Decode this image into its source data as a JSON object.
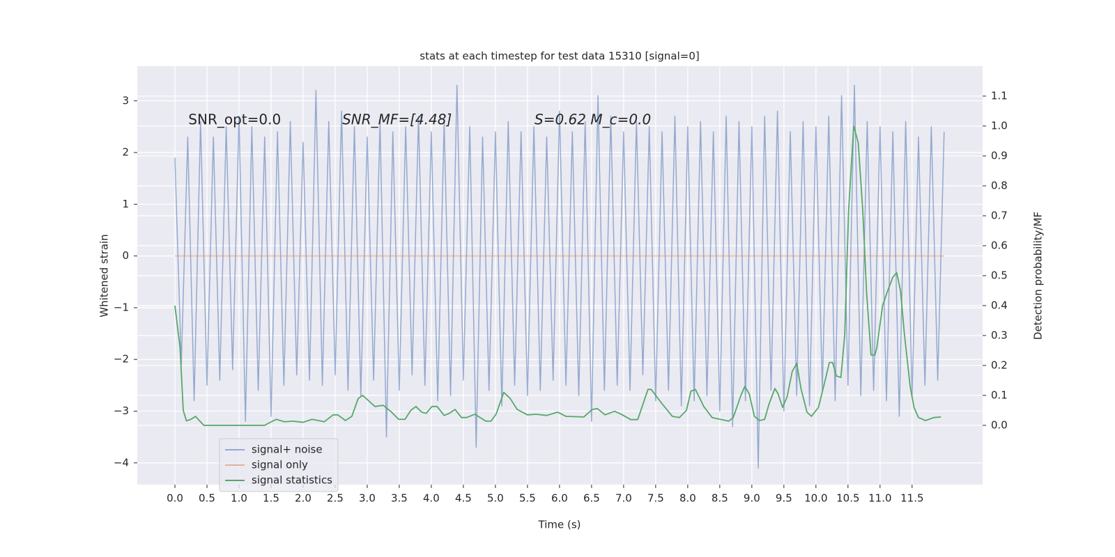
{
  "chart_data": {
    "type": "line",
    "title": "stats at each timestep for test data 15310 [signal=0]",
    "x_label": "Time (s)",
    "y_label": "Whitened strain",
    "y2_label": "Detection probability/MF",
    "annotations": [
      "SNR_opt=0.0",
      "SNR_MF=[4.48]",
      "S=0.62   M_c=0.0"
    ],
    "xlim": [
      -0.587,
      12.6
    ],
    "ylim": [
      -4.42,
      3.67
    ],
    "y2lim": [
      -0.198,
      1.2
    ],
    "xticks": [
      {
        "value": 0,
        "label": "0.0"
      },
      0.5,
      {
        "value": 1,
        "label": "1.0"
      },
      1.5,
      {
        "value": 2,
        "label": "2.0"
      },
      2.5,
      {
        "value": 3,
        "label": "3.0"
      },
      3.5,
      {
        "value": 4,
        "label": "4.0"
      },
      4.5,
      {
        "value": 5,
        "label": "5.0"
      },
      5.5,
      {
        "value": 6,
        "label": "6.0"
      },
      6.5,
      {
        "value": 7,
        "label": "7.0"
      },
      7.5,
      {
        "value": 8,
        "label": "8.0"
      },
      8.5,
      {
        "value": 9,
        "label": "9.0"
      },
      9.5,
      {
        "value": 10,
        "label": "10.0"
      },
      10.5,
      {
        "value": 11,
        "label": "11.0"
      },
      11.5
    ],
    "yticks": [
      3,
      2,
      1,
      0,
      {
        "value": -1,
        "label": "−1"
      },
      {
        "value": -2,
        "label": "−2"
      },
      {
        "value": -3,
        "label": "−3"
      },
      {
        "value": -4,
        "label": "−4"
      }
    ],
    "y2ticks": [
      {
        "value": 0,
        "label": "0.0"
      },
      0.1,
      0.2,
      0.3,
      0.4,
      0.5,
      0.6,
      0.7,
      0.8,
      0.9,
      {
        "value": 1,
        "label": "1.0"
      },
      1.1
    ],
    "grid": true,
    "legend": "lower left",
    "series": [
      {
        "name": "signal+ noise",
        "color": "#4c72b0",
        "alpha": 0.55,
        "x": [
          0,
          0.1,
          0.2,
          0.3,
          0.4,
          0.5,
          0.6,
          0.7,
          0.8,
          0.9,
          1,
          1.1,
          1.2,
          1.3,
          1.4,
          1.5,
          1.6,
          1.7,
          1.8,
          1.9,
          2,
          2.1,
          2.2,
          2.3,
          2.4,
          2.5,
          2.6,
          2.7,
          2.8,
          2.9,
          3,
          3.1,
          3.2,
          3.3,
          3.4,
          3.5,
          3.6,
          3.7,
          3.8,
          3.9,
          4,
          4.1,
          4.2,
          4.3,
          4.4,
          4.5,
          4.6,
          4.7,
          4.8,
          4.9,
          5,
          5.1,
          5.2,
          5.3,
          5.4,
          5.5,
          5.6,
          5.7,
          5.8,
          5.9,
          6,
          6.1,
          6.2,
          6.3,
          6.4,
          6.5,
          6.6,
          6.7,
          6.8,
          6.9,
          7,
          7.1,
          7.2,
          7.3,
          7.4,
          7.5,
          7.6,
          7.7,
          7.8,
          7.9,
          8,
          8.1,
          8.2,
          8.3,
          8.4,
          8.5,
          8.6,
          8.7,
          8.8,
          8.9,
          9,
          9.1,
          9.2,
          9.3,
          9.4,
          9.5,
          9.6,
          9.7,
          9.8,
          9.9,
          10,
          10.1,
          10.2,
          10.3,
          10.4,
          10.5,
          10.6,
          10.7,
          10.8,
          10.9,
          11,
          11.1,
          11.2,
          11.3,
          11.4,
          11.5,
          11.6,
          11.7,
          11.8,
          11.9,
          12
        ],
        "values": [
          1.9,
          -2.1,
          2.3,
          -2.8,
          2.6,
          -2.5,
          2.3,
          -2.4,
          2.5,
          -2.2,
          2.7,
          -3.2,
          2.5,
          -2.6,
          2.3,
          -3.1,
          2.4,
          -2.5,
          2.6,
          -2.3,
          2.2,
          -2.4,
          3.2,
          -2.5,
          2.6,
          -2.3,
          2.8,
          -2.6,
          2.5,
          -2.7,
          2.3,
          -2.4,
          2.6,
          -3.5,
          2.4,
          -2.6,
          2.5,
          -2.3,
          2.7,
          -2.5,
          2.4,
          -2.8,
          2.6,
          -2.7,
          3.3,
          -2.4,
          2.5,
          -3.7,
          2.3,
          -2.6,
          2.4,
          -2.9,
          2.6,
          -2.5,
          2.4,
          -2.7,
          2.5,
          -2.6,
          2.3,
          -2.4,
          2.8,
          -2.5,
          2.4,
          -2.7,
          2.6,
          -3.2,
          3.1,
          -2.6,
          2.7,
          -2.5,
          2.4,
          -2.6,
          2.6,
          -2.3,
          2.5,
          -2.8,
          2.4,
          -2.6,
          2.7,
          -2.9,
          2.5,
          -2.8,
          2.6,
          -2.7,
          2.4,
          -3.0,
          2.7,
          -3.3,
          2.6,
          -2.8,
          2.5,
          -4.1,
          2.7,
          -2.6,
          2.8,
          -3.0,
          2.4,
          -2.7,
          2.6,
          -2.9,
          2.5,
          -2.6,
          2.7,
          -2.8,
          3.1,
          -2.5,
          3.3,
          -2.7,
          2.6,
          -2.6,
          2.5,
          -2.8,
          2.4,
          -3.1,
          2.6,
          -2.7,
          2.3,
          -2.5,
          2.5,
          -2.4,
          2.4
        ]
      },
      {
        "name": "signal only",
        "color": "#dd8452",
        "alpha": 0.55,
        "x": [
          0,
          12
        ],
        "values": [
          0,
          0
        ]
      },
      {
        "name": "signal statistics",
        "color": "#55a868",
        "alpha": 1,
        "axis": "y2",
        "x": [
          0,
          0.08,
          0.13,
          0.18,
          0.25,
          0.32,
          0.45,
          0.64,
          0.97,
          1.4,
          1.46,
          1.58,
          1.71,
          1.84,
          2.0,
          2.14,
          2.33,
          2.47,
          2.54,
          2.66,
          2.76,
          2.86,
          2.93,
          3.12,
          3.25,
          3.38,
          3.49,
          3.59,
          3.68,
          3.76,
          3.85,
          3.92,
          4.01,
          4.09,
          4.2,
          4.28,
          4.37,
          4.47,
          4.55,
          4.68,
          4.85,
          4.93,
          5.01,
          5.13,
          5.23,
          5.34,
          5.5,
          5.64,
          5.8,
          5.97,
          6.1,
          6.38,
          6.51,
          6.59,
          6.71,
          6.86,
          6.98,
          7.11,
          7.22,
          7.38,
          7.43,
          7.6,
          7.76,
          7.87,
          7.98,
          8.05,
          8.12,
          8.25,
          8.38,
          8.64,
          8.71,
          8.83,
          8.89,
          8.96,
          9.04,
          9.12,
          9.2,
          9.27,
          9.36,
          9.41,
          9.48,
          9.55,
          9.63,
          9.7,
          9.77,
          9.86,
          9.93,
          10.04,
          10.14,
          10.21,
          10.26,
          10.32,
          10.39,
          10.45,
          10.51,
          10.59,
          10.66,
          10.73,
          10.79,
          10.86,
          10.92,
          10.95,
          11.04,
          11.11,
          11.2,
          11.26,
          11.32,
          11.38,
          11.47,
          11.53,
          11.6,
          11.71,
          11.84,
          11.95
        ],
        "values": [
          0.4,
          0.26,
          0.05,
          0.015,
          0.02,
          0.03,
          0.0,
          0.0,
          0.0,
          0.0,
          0.007,
          0.02,
          0.012,
          0.014,
          0.01,
          0.02,
          0.012,
          0.035,
          0.035,
          0.016,
          0.03,
          0.09,
          0.1,
          0.063,
          0.067,
          0.044,
          0.02,
          0.02,
          0.05,
          0.063,
          0.044,
          0.04,
          0.063,
          0.063,
          0.033,
          0.04,
          0.053,
          0.026,
          0.026,
          0.037,
          0.014,
          0.014,
          0.037,
          0.11,
          0.09,
          0.053,
          0.035,
          0.037,
          0.033,
          0.044,
          0.03,
          0.028,
          0.053,
          0.056,
          0.035,
          0.047,
          0.035,
          0.019,
          0.019,
          0.12,
          0.12,
          0.072,
          0.03,
          0.026,
          0.05,
          0.114,
          0.12,
          0.063,
          0.026,
          0.014,
          0.026,
          0.1,
          0.13,
          0.105,
          0.03,
          0.016,
          0.02,
          0.072,
          0.123,
          0.105,
          0.06,
          0.095,
          0.18,
          0.207,
          0.12,
          0.044,
          0.03,
          0.06,
          0.147,
          0.21,
          0.21,
          0.165,
          0.16,
          0.305,
          0.72,
          1.0,
          0.944,
          0.72,
          0.444,
          0.235,
          0.235,
          0.26,
          0.4,
          0.444,
          0.495,
          0.51,
          0.449,
          0.305,
          0.13,
          0.06,
          0.026,
          0.016,
          0.026,
          0.028
        ]
      }
    ]
  }
}
